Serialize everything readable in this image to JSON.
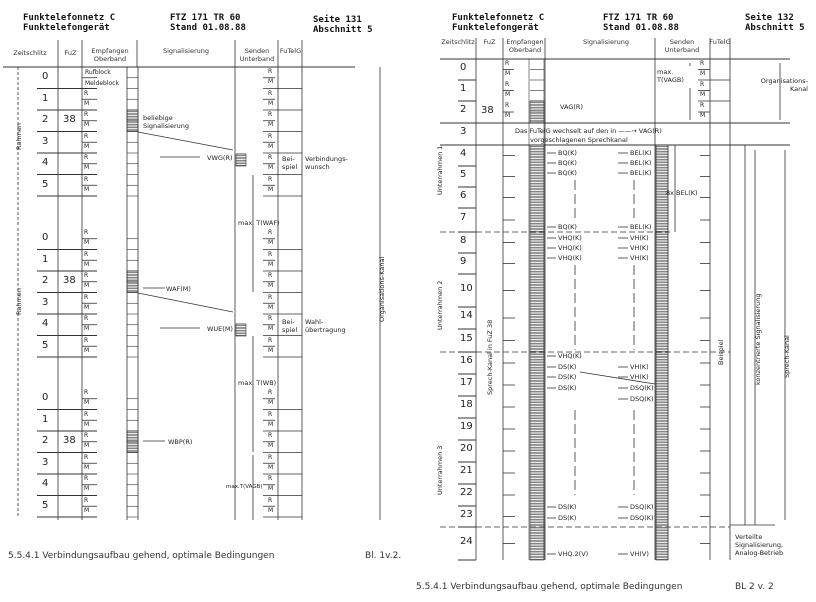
{
  "left_page": {
    "header": {
      "title1": "Funktelefonnetz C",
      "title2": "Funktelefongerät",
      "doc1": "FTZ 171 TR 60",
      "doc2": "Stand 01.08.88",
      "page1": "Seite 131",
      "page2": "Abschnitt 5"
    },
    "columns": [
      "Zeitschlitz",
      "FuZ",
      "Empfangen Oberband",
      "Signalisierung",
      "Senden Unterband",
      "FuTelG"
    ],
    "frames": [
      [
        "0",
        "1",
        "2",
        "3",
        "4",
        "5"
      ],
      [
        "0",
        "1",
        "2",
        "3",
        "4",
        "5"
      ],
      [
        "0",
        "1",
        "2",
        "3",
        "4",
        "5"
      ]
    ],
    "fuz_value": "38",
    "r_label": "R",
    "m_label": "M",
    "ruf": "Rufblock",
    "melde": "Meldeblock",
    "frame_label": "Rahmen",
    "signals": {
      "beliebige": "beliebige Signalisierung",
      "vwg": "VWG(R)",
      "waf": "WAF(M)",
      "wue": "WUE(M)",
      "wbp": "WBP(R)",
      "t_waf": "max. T(WAF)",
      "t_wb": "max. T(WB)",
      "t_vagb": "max.T(VAGB)",
      "beispiel": "Bei- spiel",
      "verbindungswunsch": "Verbindungs- wunsch",
      "wahl": "Wahl- übertragung",
      "org_kanal": "Organisations-Kanal"
    },
    "footer": {
      "caption": "5.5.4.1 Verbindungsaufbau gehend, optimale Bedingungen",
      "sheet": "Bl. 1v.2."
    }
  },
  "right_page": {
    "header": {
      "title1": "Funktelefonnetz C",
      "title2": "Funktelefongerät",
      "doc1": "FTZ 171 TR 60",
      "doc2": "Stand 01.08.88",
      "page1": "Seite 132",
      "page2": "Abschnitt 5"
    },
    "columns": [
      "Zeitschlitz",
      "FuZ",
      "Empfangen Oberband",
      "Signalisierung",
      "Senden Unterband",
      "FuTelG"
    ],
    "slots": [
      "0",
      "1",
      "2",
      "3",
      "4",
      "5",
      "6",
      "7",
      "8",
      "9",
      "10",
      "14",
      "15",
      "16",
      "17",
      "18",
      "19",
      "20",
      "21",
      "22",
      "23",
      "24"
    ],
    "fuz_value": "38",
    "r_label": "R",
    "m_label": "M",
    "vag": "VAG(R)",
    "t_vagb": "max. T(VAGB)",
    "org_kanal": "Organisations- Kanal",
    "wechsel1": "Das FuTelG wechselt auf den in ——→ VAG(R)",
    "wechsel2": "vorgeschlagenen Sprechkanal",
    "subframes": [
      "Unterrahmen 1",
      "Unterrahmen 2",
      "Unterrahmen 3"
    ],
    "sprechkanal_fuz": "Sprech-Kanal in FuZ 38",
    "bel8": "8x BEL(K)",
    "beispiel": "Beispiel",
    "konzentriert": "konzentrierte Signalisierung",
    "sprech_kanal": "Sprech-Kanal",
    "verteilt": "Verteilte Signalisierung, Analog-Betrieb",
    "down_signals": [
      "BQ(K)",
      "BQ(K)",
      "BQ(K)",
      "BQ(K)",
      "VHQ(K)",
      "VHQ(K)",
      "VHQ(K)",
      "VHQ(K)",
      "DS(K)",
      "DS(K)",
      "DS(K)",
      "DS(K)",
      "DS(K)",
      "VHQ.2(V)"
    ],
    "up_signals": [
      "BEL(K)",
      "BEL(K)",
      "BEL(K)",
      "BEL(K)",
      "VH(K)",
      "VH(K)",
      "VH(K)",
      "VH(K)",
      "VH(K)",
      "DSQ(K)",
      "DSQ(K)",
      "DSQ(K)",
      "DSQ(K)",
      "VH(V)"
    ],
    "footer": {
      "caption": "5.5.4.1 Verbindungsaufbau gehend, optimale Bedingungen",
      "sheet": "BL 2 v. 2"
    }
  }
}
